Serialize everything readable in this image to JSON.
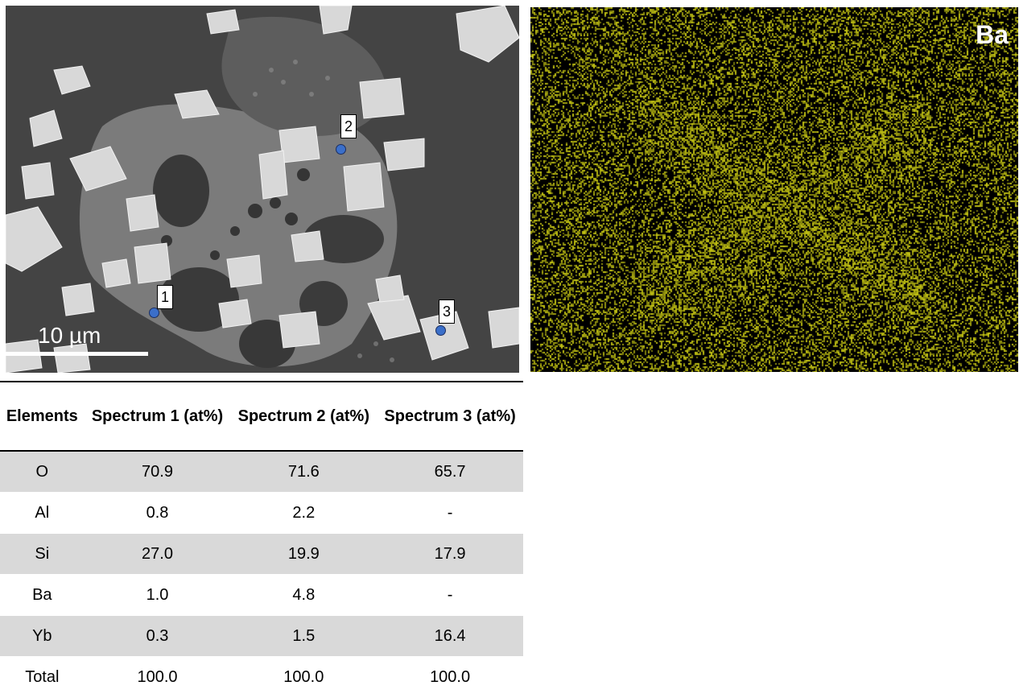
{
  "sem_image": {
    "scale_bar_label": "10 µm",
    "spectrum_markers": [
      "1",
      "2",
      "3"
    ],
    "marker_color": "#3b6fc9"
  },
  "eds_map": {
    "element_label": "Ba",
    "map_color": "#c8c814"
  },
  "table": {
    "headers": [
      "Elements",
      "Spectrum 1 (at%)",
      "Spectrum 2 (at%)",
      "Spectrum 3 (at%)"
    ],
    "rows": [
      [
        "O",
        "70.9",
        "71.6",
        "65.7"
      ],
      [
        "Al",
        "0.8",
        "2.2",
        "-"
      ],
      [
        "Si",
        "27.0",
        "19.9",
        "17.9"
      ],
      [
        "Ba",
        "1.0",
        "4.8",
        "-"
      ],
      [
        "Yb",
        "0.3",
        "1.5",
        "16.4"
      ],
      [
        "Total",
        "100.0",
        "100.0",
        "100.0"
      ]
    ]
  }
}
